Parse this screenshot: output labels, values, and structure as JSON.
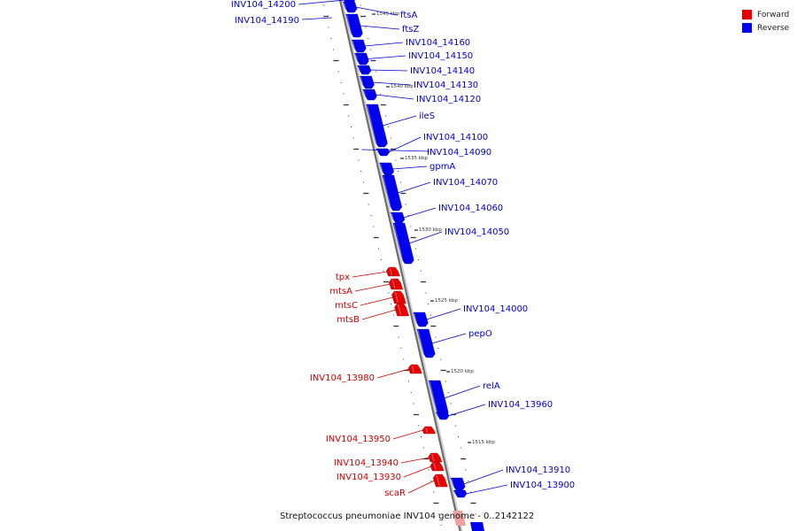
{
  "colors": {
    "forward": "#e60000",
    "reverse": "#0000ee",
    "forward_label": "#cc0000",
    "reverse_label": "#0000cc",
    "selected": "#f0a0a0"
  },
  "legend": {
    "forward_label": "Forward",
    "reverse_label": "Reverse"
  },
  "caption": "Streptococcus pneumoniae INV104 genome - 0..2142122",
  "scale_ticks": [
    {
      "label": "1545 kbp"
    },
    {
      "label": "1540 kbp"
    },
    {
      "label": "1535 kbp"
    },
    {
      "label": "1530 kbp"
    },
    {
      "label": "1525 kbp"
    },
    {
      "label": "1520 kbp"
    },
    {
      "label": "1515 kbp"
    }
  ],
  "genes": [
    {
      "name": "INV104_14200",
      "strand": "reverse"
    },
    {
      "name": "INV104_14190",
      "strand": "reverse"
    },
    {
      "name": "ftsA",
      "strand": "reverse"
    },
    {
      "name": "ftsZ",
      "strand": "reverse"
    },
    {
      "name": "INV104_14160",
      "strand": "reverse"
    },
    {
      "name": "INV104_14150",
      "strand": "reverse"
    },
    {
      "name": "INV104_14140",
      "strand": "reverse"
    },
    {
      "name": "INV104_14130",
      "strand": "reverse"
    },
    {
      "name": "INV104_14120",
      "strand": "reverse"
    },
    {
      "name": "ileS",
      "strand": "reverse"
    },
    {
      "name": "INV104_14100",
      "strand": "reverse"
    },
    {
      "name": "INV104_14090",
      "strand": "reverse"
    },
    {
      "name": "gpmA",
      "strand": "reverse"
    },
    {
      "name": "INV104_14070",
      "strand": "reverse"
    },
    {
      "name": "INV104_14060",
      "strand": "reverse"
    },
    {
      "name": "INV104_14050",
      "strand": "reverse"
    },
    {
      "name": "tpx",
      "strand": "forward"
    },
    {
      "name": "mtsA",
      "strand": "forward"
    },
    {
      "name": "mtsC",
      "strand": "forward"
    },
    {
      "name": "mtsB",
      "strand": "forward"
    },
    {
      "name": "INV104_14000",
      "strand": "reverse"
    },
    {
      "name": "pepO",
      "strand": "reverse"
    },
    {
      "name": "INV104_13980",
      "strand": "forward"
    },
    {
      "name": "relA",
      "strand": "reverse"
    },
    {
      "name": "INV104_13960",
      "strand": "reverse"
    },
    {
      "name": "INV104_13950",
      "strand": "forward"
    },
    {
      "name": "INV104_13940",
      "strand": "forward"
    },
    {
      "name": "INV104_13930",
      "strand": "forward"
    },
    {
      "name": "scaR",
      "strand": "forward"
    },
    {
      "name": "INV104_13910",
      "strand": "reverse"
    },
    {
      "name": "INV104_13900",
      "strand": "reverse"
    }
  ]
}
